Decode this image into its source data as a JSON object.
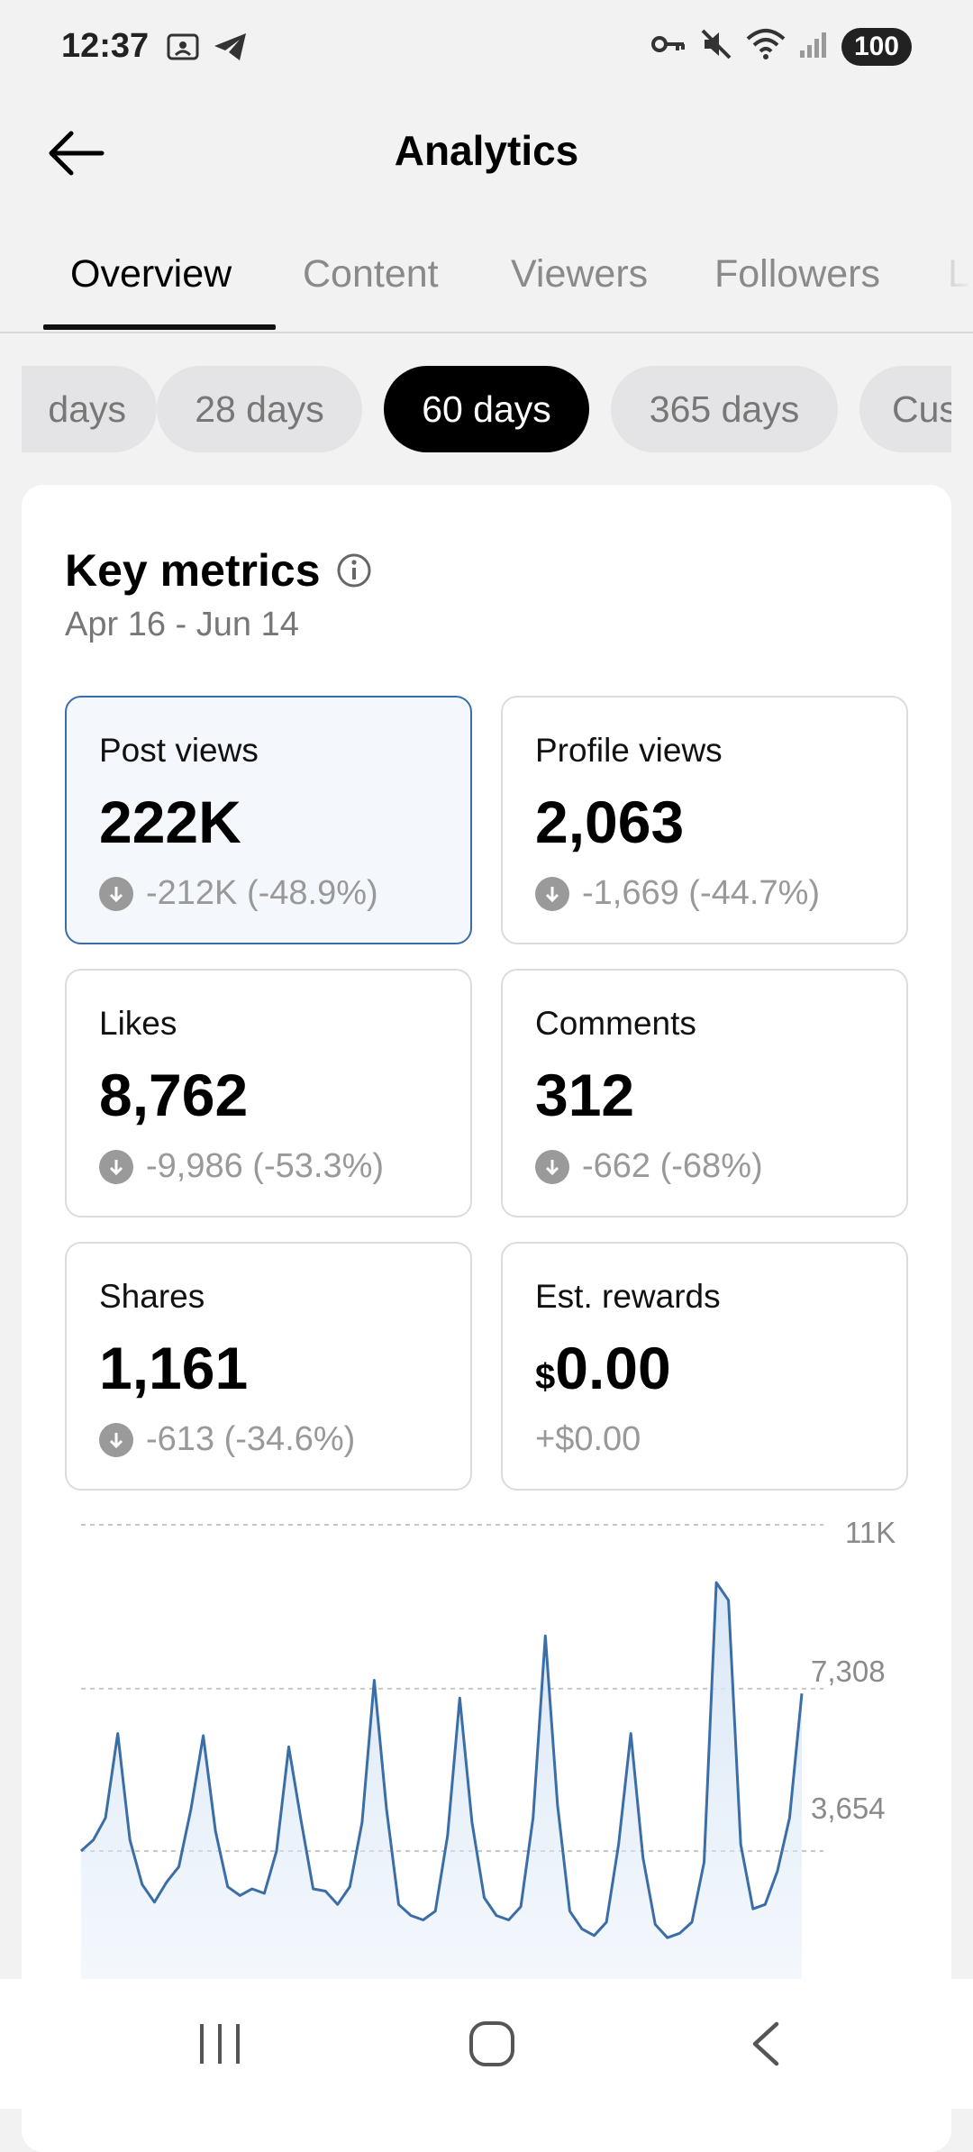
{
  "status": {
    "time": "12:37",
    "left_icons": [
      "screenshot-icon",
      "telegram-icon"
    ],
    "right_icons": [
      "key-icon",
      "mute-icon",
      "wifi-icon",
      "signal-icon"
    ],
    "battery": "100"
  },
  "header": {
    "title": "Analytics",
    "back_icon": "arrow-left-icon"
  },
  "tabs": [
    {
      "label": "Overview",
      "active": true
    },
    {
      "label": "Content",
      "active": false
    },
    {
      "label": "Viewers",
      "active": false
    },
    {
      "label": "Followers",
      "active": false
    },
    {
      "label": "L",
      "active": false
    }
  ],
  "ranges": [
    {
      "label": "days",
      "active": false
    },
    {
      "label": "28 days",
      "active": false
    },
    {
      "label": "60 days",
      "active": true
    },
    {
      "label": "365 days",
      "active": false
    },
    {
      "label": "Cus",
      "active": false
    }
  ],
  "key_metrics": {
    "title": "Key metrics",
    "info_icon": "info-icon",
    "range": "Apr 16 - Jun 14",
    "cards": [
      {
        "label": "Post views",
        "value": "222K",
        "change": "-212K (-48.9%)",
        "trend": "down",
        "selected": true
      },
      {
        "label": "Profile views",
        "value": "2,063",
        "change": "-1,669 (-44.7%)",
        "trend": "down",
        "selected": false
      },
      {
        "label": "Likes",
        "value": "8,762",
        "change": "-9,986 (-53.3%)",
        "trend": "down",
        "selected": false
      },
      {
        "label": "Comments",
        "value": "312",
        "change": "-662 (-68%)",
        "trend": "down",
        "selected": false
      },
      {
        "label": "Shares",
        "value": "1,161",
        "change": "-613 (-34.6%)",
        "trend": "down",
        "selected": false
      },
      {
        "label": "Est. rewards",
        "currency": "$",
        "value": "0.00",
        "change": "+$0.00",
        "trend": "none",
        "selected": false
      }
    ]
  },
  "chart_data": {
    "type": "area",
    "series": [
      {
        "values": [
          3654,
          3900,
          4400,
          6300,
          3900,
          2900,
          2500,
          2950,
          3300,
          4600,
          6250,
          4100,
          2850,
          2650,
          2800,
          2700,
          3650,
          6000,
          4350,
          2800,
          2750,
          2450,
          2850,
          4300,
          7500,
          4600,
          2450,
          2200,
          2100,
          2300,
          4000,
          7100,
          4300,
          2600,
          2200,
          2100,
          2400,
          4400,
          8500,
          4700,
          2300,
          1900,
          1750,
          2050,
          3800,
          6300,
          3500,
          2000,
          1700,
          1800,
          2050,
          3400,
          9700,
          9300,
          3800,
          2350,
          2450,
          3200,
          4400,
          7200
        ]
      }
    ],
    "y_ticks": [
      "11K",
      "7,308",
      "3,654"
    ],
    "ylim": [
      0,
      11000
    ],
    "grid": true,
    "colors": {
      "line": "#3b6ea6",
      "fill": "#dbe8f6"
    }
  },
  "navbar": [
    "recents-icon",
    "home-icon",
    "back-icon"
  ]
}
